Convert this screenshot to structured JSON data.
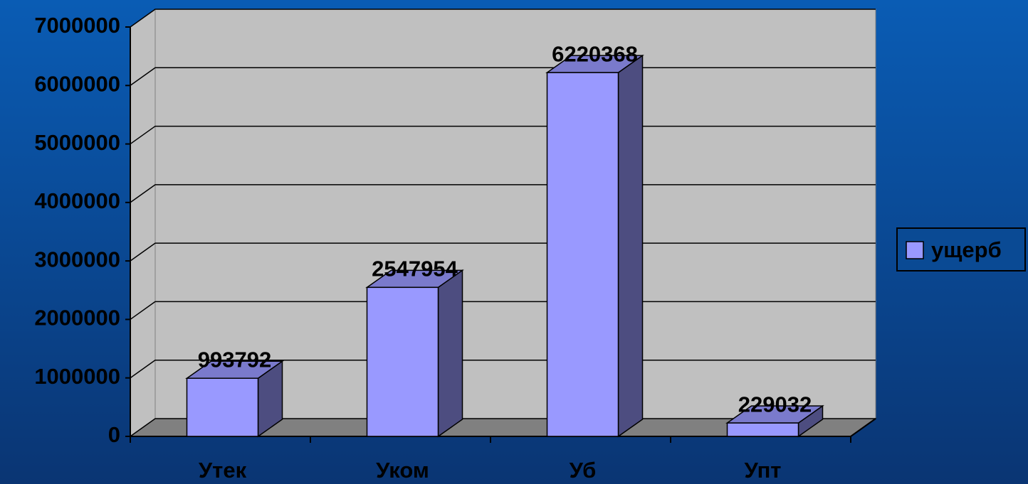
{
  "chart_data": {
    "type": "bar3d",
    "categories": [
      "Утек",
      "Уком",
      "Уб",
      "Упт"
    ],
    "series": [
      {
        "name": "ущерб",
        "color": "#9999ff",
        "values": [
          993792,
          2547954,
          6220368,
          229032
        ]
      }
    ],
    "ylim": [
      0,
      7000000
    ],
    "yticks": [
      0,
      1000000,
      2000000,
      3000000,
      4000000,
      5000000,
      6000000,
      7000000
    ],
    "grid": true,
    "legend": "right"
  }
}
